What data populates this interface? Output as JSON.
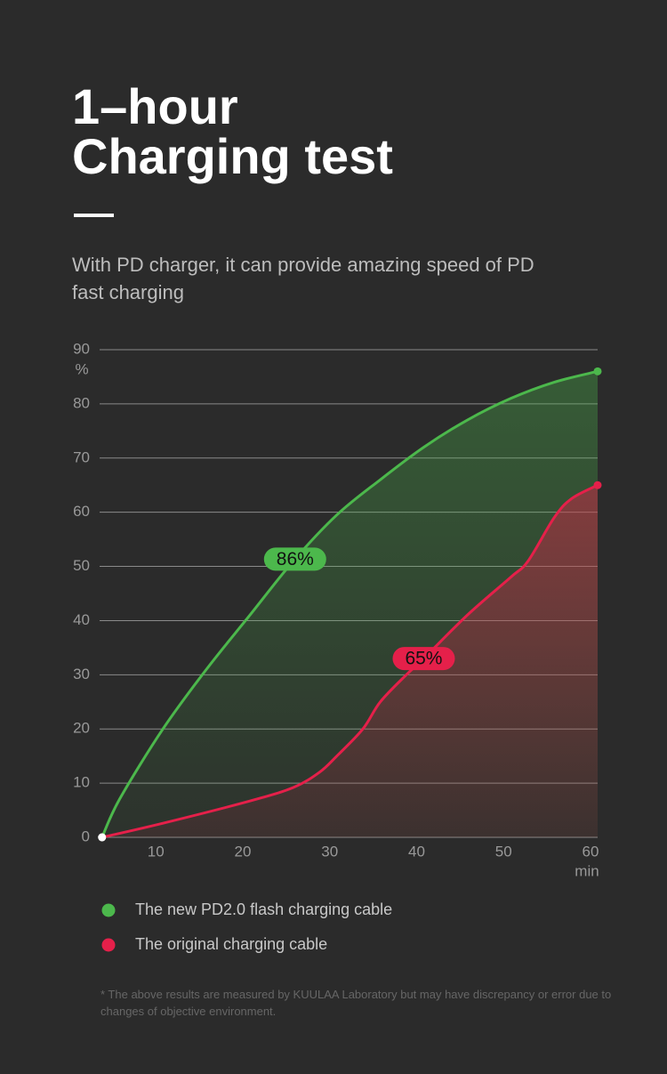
{
  "chart_data": {
    "type": "line",
    "title": "1–hour Charging test",
    "subtitle": "With PD charger, it can provide amazing speed of PD fast charging",
    "y_label": "%",
    "x_label": "min",
    "xlim": [
      2,
      60
    ],
    "xticks": [
      10,
      20,
      30,
      40,
      50,
      60
    ],
    "ylim": [
      0,
      90
    ],
    "yticks": [
      0,
      10,
      20,
      30,
      40,
      50,
      60,
      70,
      80,
      90
    ],
    "grid": true,
    "series": [
      {
        "name": "The new PD2.0 flash charging cable",
        "color": "#4cb84c",
        "x": [
          3,
          5,
          10,
          15,
          20,
          25,
          30,
          35,
          40,
          45,
          50,
          55,
          60
        ],
        "values": [
          0,
          7,
          20,
          31,
          41,
          51,
          59.5,
          66,
          72,
          77,
          81,
          84,
          86
        ],
        "value_labels": [
          null,
          null,
          null,
          null,
          null,
          null,
          null,
          null,
          null,
          null,
          null,
          null,
          "86%"
        ]
      },
      {
        "name": "The original charging cable",
        "color": "#e5204a",
        "x": [
          3,
          10,
          20,
          25,
          28,
          30,
          33,
          35,
          38,
          40,
          45,
          50,
          52,
          55,
          57,
          60
        ],
        "values": [
          0,
          2.6,
          6.7,
          9.2,
          12,
          15,
          20,
          25,
          30,
          33,
          41,
          48,
          51,
          59,
          62.5,
          65
        ],
        "value_labels": [
          null,
          null,
          null,
          null,
          null,
          null,
          null,
          null,
          null,
          null,
          null,
          null,
          null,
          null,
          null,
          "65%"
        ]
      }
    ],
    "footnote": "* The above results are measured by KUULAA Laboratory but may have discrepancy or error due to changes of objective environment."
  }
}
